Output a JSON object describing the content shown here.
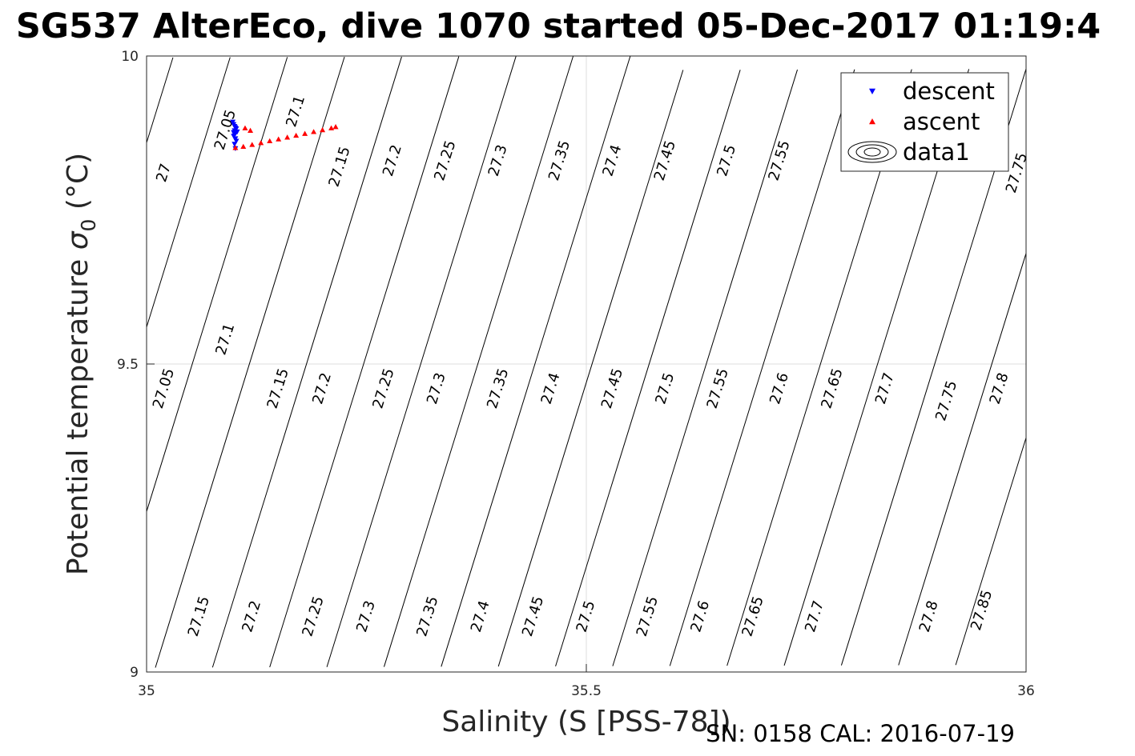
{
  "chart_data": {
    "type": "scatter",
    "title": "SG537 AlterEco, dive 1070 started 05-Dec-2017 01:19:4",
    "xlabel": "Salinity (S [PSS-78])",
    "ylabel": "Potential temperature",
    "ylabel_symbol": "σ",
    "ylabel_subscript": "0",
    "ylabel_unit": "(°C)",
    "xlim": [
      35,
      36
    ],
    "ylim": [
      9,
      10
    ],
    "x_ticks": [
      {
        "value": 35,
        "label": "35"
      },
      {
        "value": 35.5,
        "label": "35.5"
      },
      {
        "value": 36,
        "label": "36"
      }
    ],
    "y_ticks": [
      {
        "value": 9,
        "label": "9"
      },
      {
        "value": 9.5,
        "label": "9.5"
      },
      {
        "value": 10,
        "label": "10"
      }
    ],
    "grid": true,
    "legend_placement": "top-right",
    "legend": [
      {
        "label": "descent",
        "marker": "triangle-down",
        "color": "#0000ff"
      },
      {
        "label": "ascent",
        "marker": "triangle-up",
        "color": "#ff0000"
      },
      {
        "label": "data1",
        "marker": "contour",
        "color": "#000000"
      }
    ],
    "contour_levels": [
      27,
      27.05,
      27.1,
      27.15,
      27.2,
      27.25,
      27.3,
      27.35,
      27.4,
      27.45,
      27.5,
      27.55,
      27.6,
      27.65,
      27.7,
      27.75,
      27.8,
      27.85
    ],
    "contour_labels": [
      {
        "text": "27",
        "s": 35.02,
        "t": 9.81
      },
      {
        "text": "27.05",
        "s": 35.09,
        "t": 9.88
      },
      {
        "text": "27.1",
        "s": 35.17,
        "t": 9.91
      },
      {
        "text": "27.15",
        "s": 35.22,
        "t": 9.82
      },
      {
        "text": "27.2",
        "s": 35.28,
        "t": 9.83
      },
      {
        "text": "27.25",
        "s": 35.34,
        "t": 9.83
      },
      {
        "text": "27.3",
        "s": 35.4,
        "t": 9.83
      },
      {
        "text": "27.35",
        "s": 35.47,
        "t": 9.83
      },
      {
        "text": "27.4",
        "s": 35.53,
        "t": 9.83
      },
      {
        "text": "27.45",
        "s": 35.59,
        "t": 9.83
      },
      {
        "text": "27.5",
        "s": 35.66,
        "t": 9.83
      },
      {
        "text": "27.55",
        "s": 35.72,
        "t": 9.83
      },
      {
        "text": "27.75",
        "s": 35.99,
        "t": 9.81
      },
      {
        "text": "27.05",
        "s": 35.02,
        "t": 9.46
      },
      {
        "text": "27.1",
        "s": 35.09,
        "t": 9.54
      },
      {
        "text": "27.15",
        "s": 35.15,
        "t": 9.46
      },
      {
        "text": "27.2",
        "s": 35.2,
        "t": 9.46
      },
      {
        "text": "27.25",
        "s": 35.27,
        "t": 9.46
      },
      {
        "text": "27.3",
        "s": 35.33,
        "t": 9.46
      },
      {
        "text": "27.35",
        "s": 35.4,
        "t": 9.46
      },
      {
        "text": "27.4",
        "s": 35.46,
        "t": 9.46
      },
      {
        "text": "27.45",
        "s": 35.53,
        "t": 9.46
      },
      {
        "text": "27.5",
        "s": 35.59,
        "t": 9.46
      },
      {
        "text": "27.55",
        "s": 35.65,
        "t": 9.46
      },
      {
        "text": "27.6",
        "s": 35.72,
        "t": 9.46
      },
      {
        "text": "27.65",
        "s": 35.78,
        "t": 9.46
      },
      {
        "text": "27.7",
        "s": 35.84,
        "t": 9.46
      },
      {
        "text": "27.75",
        "s": 35.91,
        "t": 9.44
      },
      {
        "text": "27.8",
        "s": 35.97,
        "t": 9.46
      },
      {
        "text": "27.15",
        "s": 35.06,
        "t": 9.09
      },
      {
        "text": "27.2",
        "s": 35.12,
        "t": 9.09
      },
      {
        "text": "27.25",
        "s": 35.19,
        "t": 9.09
      },
      {
        "text": "27.3",
        "s": 35.25,
        "t": 9.09
      },
      {
        "text": "27.35",
        "s": 35.32,
        "t": 9.09
      },
      {
        "text": "27.4",
        "s": 35.38,
        "t": 9.09
      },
      {
        "text": "27.45",
        "s": 35.44,
        "t": 9.09
      },
      {
        "text": "27.5",
        "s": 35.5,
        "t": 9.09
      },
      {
        "text": "27.55",
        "s": 35.57,
        "t": 9.09
      },
      {
        "text": "27.6",
        "s": 35.63,
        "t": 9.09
      },
      {
        "text": "27.65",
        "s": 35.69,
        "t": 9.09
      },
      {
        "text": "27.7",
        "s": 35.76,
        "t": 9.09
      },
      {
        "text": "27.8",
        "s": 35.89,
        "t": 9.09
      },
      {
        "text": "27.85",
        "s": 35.95,
        "t": 9.1
      }
    ],
    "series": [
      {
        "name": "descent",
        "marker": "triangle-down",
        "color": "#0000ff",
        "x": [
          35.098,
          35.099,
          35.1,
          35.101,
          35.102,
          35.1,
          35.099,
          35.101,
          35.103,
          35.1,
          35.099,
          35.101,
          35.102,
          35.1,
          35.101
        ],
        "y": [
          9.893,
          9.889,
          9.886,
          9.884,
          9.882,
          9.879,
          9.876,
          9.874,
          9.877,
          9.873,
          9.87,
          9.866,
          9.862,
          9.857,
          9.85
        ]
      },
      {
        "name": "ascent",
        "marker": "triangle-up",
        "color": "#ff0000",
        "x": [
          35.101,
          35.11,
          35.12,
          35.13,
          35.14,
          35.15,
          35.16,
          35.17,
          35.18,
          35.19,
          35.2,
          35.21,
          35.215,
          35.112,
          35.118
        ],
        "y": [
          9.851,
          9.853,
          9.856,
          9.859,
          9.862,
          9.865,
          9.868,
          9.871,
          9.874,
          9.877,
          9.88,
          9.883,
          9.885,
          9.883,
          9.879
        ]
      }
    ]
  },
  "footer": {
    "text": "SN: 0158  CAL: 2016-07-19"
  }
}
